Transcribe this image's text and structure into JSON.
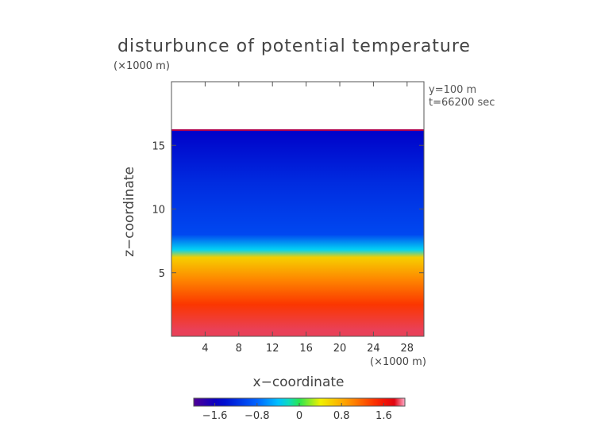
{
  "chart_data": {
    "type": "heatmap",
    "title": "disturbunce of potential temperature",
    "z_unit_label": "(×1000 m)",
    "x_unit_label": "(×1000 m)",
    "xlabel": "x−coordinate",
    "ylabel": "z−coordinate",
    "info": [
      "y=100 m",
      "t=66200 sec"
    ],
    "xlim": [
      0,
      30
    ],
    "ylim": [
      0,
      20
    ],
    "x_ticks": [
      4,
      8,
      12,
      16,
      20,
      24,
      28
    ],
    "y_ticks": [
      5,
      10,
      15
    ],
    "x_tick_labels": [
      "4",
      "8",
      "12",
      "16",
      "20",
      "24",
      "28"
    ],
    "y_tick_labels": [
      "5",
      "10",
      "15"
    ],
    "colorbar": {
      "range": [
        -2.0,
        2.0
      ],
      "ticks": [
        -1.6,
        -0.8,
        0,
        0.8,
        1.6
      ],
      "tick_labels": [
        "−1.6",
        "−0.8",
        "0",
        "0.8",
        "1.6"
      ]
    },
    "field_top_z": 16.2,
    "layers": [
      {
        "z": 0.5,
        "value": 1.9
      },
      {
        "z": 2.5,
        "value": 1.4
      },
      {
        "z": 4.5,
        "value": 1.0
      },
      {
        "z": 6.2,
        "value": 0.6
      },
      {
        "z": 6.8,
        "value": -0.3
      },
      {
        "z": 8.0,
        "value": -1.0
      },
      {
        "z": 12.0,
        "value": -1.2
      },
      {
        "z": 16.0,
        "value": -1.5
      }
    ]
  }
}
